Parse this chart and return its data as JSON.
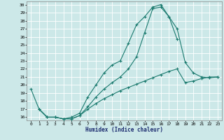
{
  "xlabel": "Humidex (Indice chaleur)",
  "background_color": "#cce8e8",
  "grid_color": "#ffffff",
  "line_color": "#1a7a6e",
  "xlim": [
    -0.5,
    23.5
  ],
  "ylim": [
    15.6,
    30.4
  ],
  "xticks": [
    0,
    1,
    2,
    3,
    4,
    5,
    6,
    7,
    8,
    9,
    10,
    11,
    12,
    13,
    14,
    15,
    16,
    17,
    18,
    19,
    20,
    21,
    22,
    23
  ],
  "yticks": [
    16,
    17,
    18,
    19,
    20,
    21,
    22,
    23,
    24,
    25,
    26,
    27,
    28,
    29,
    30
  ],
  "line1_x": [
    0,
    1,
    2,
    3,
    4,
    5,
    6,
    7,
    8,
    9,
    10,
    11,
    12,
    13,
    14,
    15,
    16,
    17,
    18
  ],
  "line1_y": [
    19.5,
    17.0,
    16.0,
    16.0,
    15.8,
    16.0,
    16.5,
    18.5,
    20.0,
    21.5,
    22.5,
    23.0,
    25.2,
    27.5,
    28.5,
    29.7,
    30.0,
    28.5,
    25.7
  ],
  "line2_x": [
    1,
    2,
    3,
    4,
    5,
    6,
    7,
    8,
    9,
    10,
    11,
    12,
    13,
    14,
    15,
    16,
    17,
    18,
    19,
    20,
    21,
    22,
    23
  ],
  "line2_y": [
    17.0,
    16.0,
    16.0,
    15.8,
    15.8,
    16.2,
    17.3,
    18.5,
    19.5,
    20.3,
    21.0,
    22.0,
    23.5,
    26.5,
    29.5,
    29.7,
    28.5,
    27.0,
    22.8,
    21.5,
    21.0,
    20.9,
    21.0
  ],
  "line3_x": [
    1,
    2,
    3,
    4,
    5,
    6,
    7,
    8,
    9,
    10,
    11,
    12,
    13,
    14,
    15,
    16,
    17,
    18,
    19,
    20,
    21,
    22,
    23
  ],
  "line3_y": [
    17.0,
    16.0,
    16.0,
    15.8,
    15.8,
    16.2,
    17.0,
    17.7,
    18.3,
    18.8,
    19.3,
    19.7,
    20.1,
    20.5,
    20.9,
    21.3,
    21.7,
    22.0,
    20.3,
    20.5,
    20.8,
    21.0,
    21.0
  ]
}
